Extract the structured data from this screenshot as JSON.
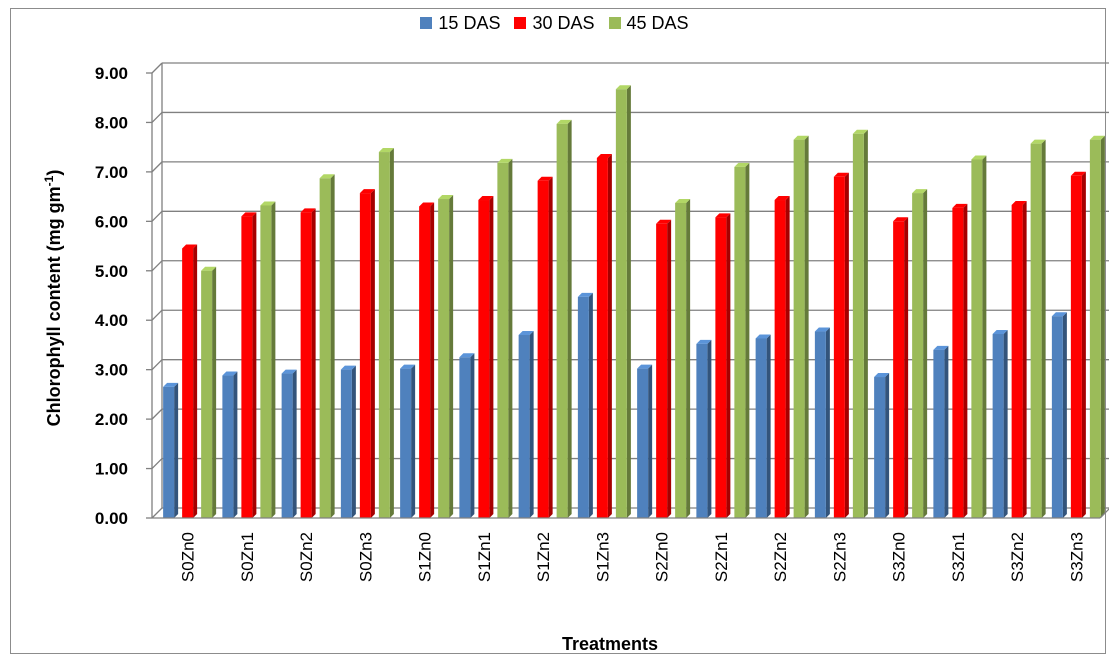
{
  "chart_data": {
    "type": "bar",
    "title": "",
    "xlabel": "Treatments",
    "ylabel": "Chlorophyll content (mg gm",
    "ylabel_superscript": "-1",
    "ylabel_close": ")",
    "ylim": [
      0,
      9
    ],
    "yticks": [
      "0.00",
      "1.00",
      "2.00",
      "3.00",
      "4.00",
      "5.00",
      "6.00",
      "7.00",
      "8.00",
      "9.00"
    ],
    "grid": true,
    "legend_position": "top-center",
    "categories": [
      "S0Zn0",
      "S0Zn1",
      "S0Zn2",
      "S0Zn3",
      "S1Zn0",
      "S1Zn1",
      "S1Zn2",
      "S1Zn3",
      "S2Zn0",
      "S2Zn1",
      "S2Zn2",
      "S2Zn3",
      "S3Zn0",
      "S3Zn1",
      "S3Zn2",
      "S3Zn3"
    ],
    "series": [
      {
        "name": "15 DAS",
        "color": "#4f81bd",
        "values": [
          2.55,
          2.78,
          2.82,
          2.9,
          2.92,
          3.15,
          3.6,
          4.37,
          2.92,
          3.42,
          3.53,
          3.67,
          2.75,
          3.3,
          3.62,
          3.98
        ]
      },
      {
        "name": "30 DAS",
        "color": "#ff0000",
        "values": [
          5.35,
          6.0,
          6.08,
          6.47,
          6.2,
          6.33,
          6.72,
          7.18,
          5.85,
          5.98,
          6.33,
          6.8,
          5.9,
          6.17,
          6.23,
          6.82
        ]
      },
      {
        "name": "45 DAS",
        "color": "#9bbb59",
        "values": [
          4.9,
          6.22,
          6.77,
          7.3,
          6.35,
          7.08,
          7.87,
          8.57,
          6.27,
          7.0,
          7.55,
          7.67,
          6.47,
          7.15,
          7.47,
          7.55
        ]
      }
    ]
  }
}
